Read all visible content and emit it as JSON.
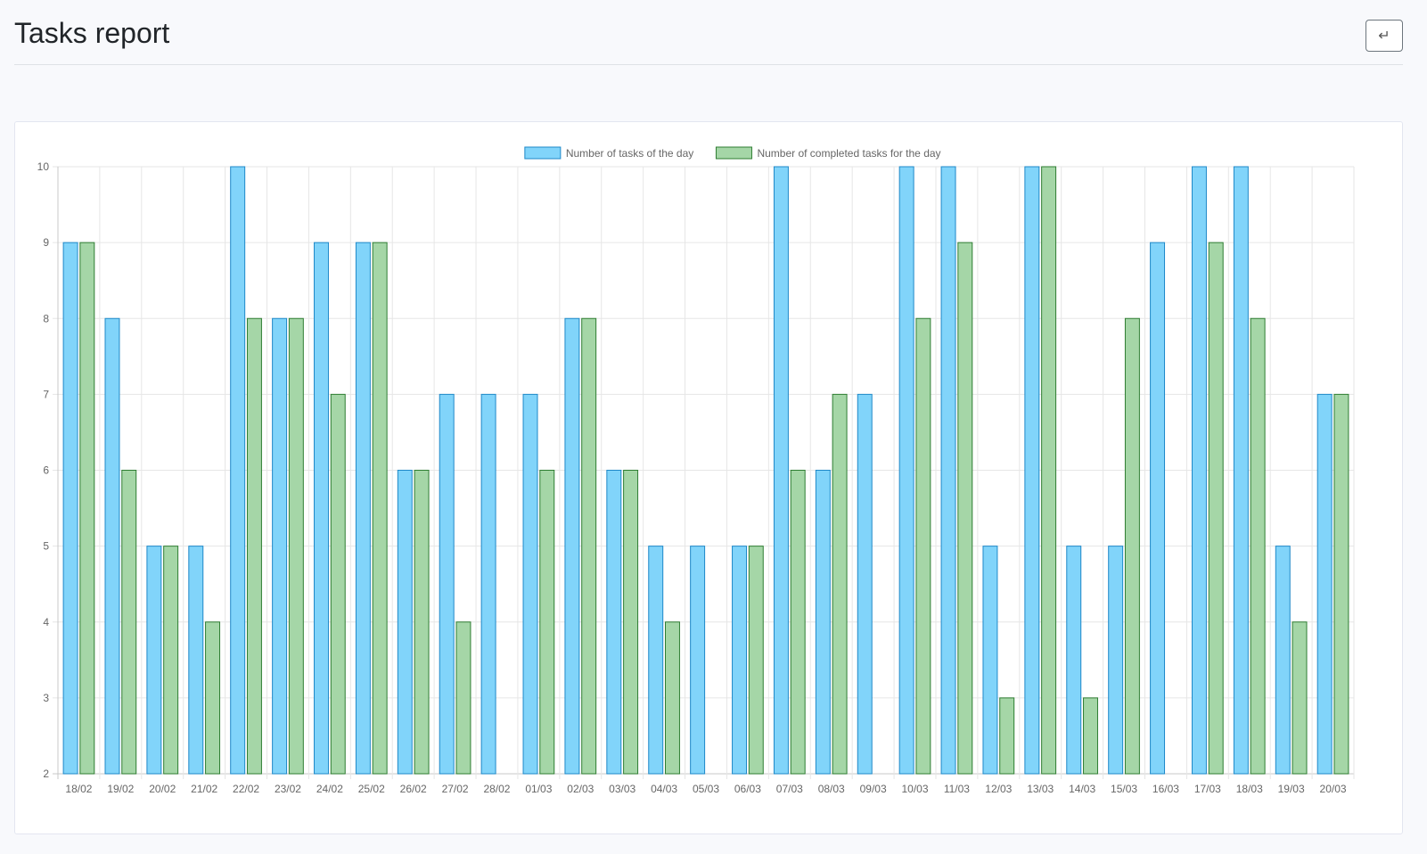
{
  "header": {
    "title": "Tasks report",
    "back_icon": "return-icon",
    "back_glyph": "↵"
  },
  "chart_data": {
    "type": "bar",
    "categories": [
      "18/02",
      "19/02",
      "20/02",
      "21/02",
      "22/02",
      "23/02",
      "24/02",
      "25/02",
      "26/02",
      "27/02",
      "28/02",
      "01/03",
      "02/03",
      "03/03",
      "04/03",
      "05/03",
      "06/03",
      "07/03",
      "08/03",
      "09/03",
      "10/03",
      "11/03",
      "12/03",
      "13/03",
      "14/03",
      "15/03",
      "16/03",
      "17/03",
      "18/03",
      "19/03",
      "20/03"
    ],
    "series": [
      {
        "name": "Number of tasks of the day",
        "color": "#81d4fa",
        "border_color": "#1e88c8",
        "values": [
          9,
          8,
          5,
          5,
          10,
          8,
          9,
          9,
          6,
          7,
          7,
          7,
          8,
          6,
          5,
          5,
          5,
          10,
          6,
          7,
          10,
          10,
          5,
          10,
          5,
          5,
          9,
          10,
          10,
          5,
          7
        ]
      },
      {
        "name": "Number of completed tasks for the day",
        "color": "#a5d6a7",
        "border_color": "#2e7d32",
        "values": [
          9,
          6,
          5,
          4,
          8,
          8,
          7,
          9,
          6,
          4,
          null,
          6,
          8,
          6,
          4,
          null,
          5,
          6,
          7,
          null,
          8,
          9,
          3,
          10,
          3,
          8,
          null,
          9,
          8,
          4,
          7
        ]
      }
    ],
    "ylim": [
      2,
      10
    ],
    "yticks": [
      2,
      3,
      4,
      5,
      6,
      7,
      8,
      9,
      10
    ],
    "grid": true,
    "legend": "top-center",
    "title": "",
    "xlabel": "",
    "ylabel": ""
  }
}
